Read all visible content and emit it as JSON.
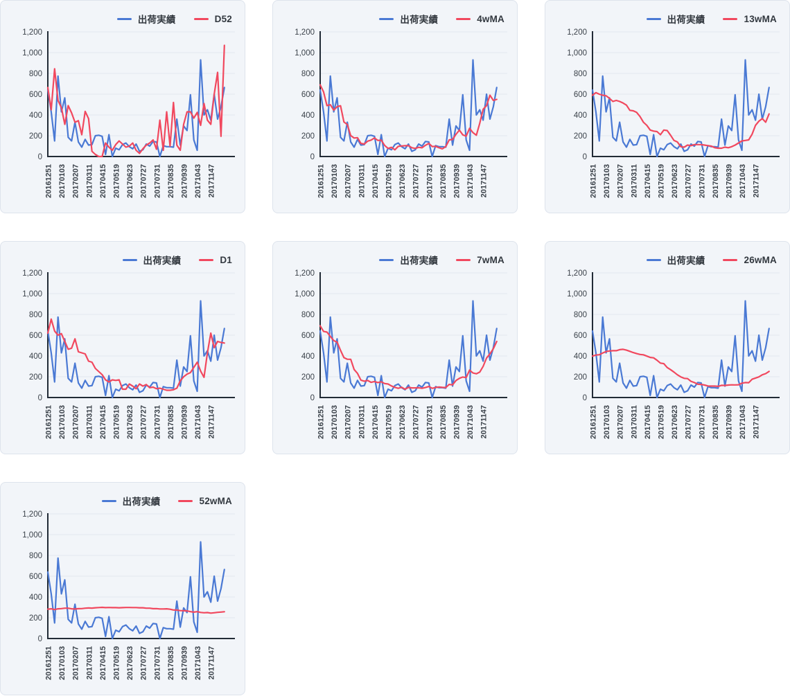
{
  "style": {
    "page_bg": "#ffffff",
    "panel_bg": "#f2f5f9",
    "panel_border": "#dde3ec",
    "actual_color": "#4a79d4",
    "comparison_color": "#f1485e",
    "axis_color": "#222b36",
    "grid_color": "#e2e7ee",
    "tick_text_color": "#3a4149"
  },
  "chart_data": {
    "type": "line",
    "n_points": 53,
    "ylim": [
      0,
      1200
    ],
    "grid": "horizontal",
    "legend_position": "top-right",
    "y_tick_values": [
      0,
      200,
      400,
      600,
      800,
      1000,
      1200
    ],
    "y_tick_labels": [
      "0",
      "200",
      "400",
      "600",
      "800",
      "1,000",
      "1,200"
    ],
    "x_tick_labels": [
      "20161251",
      "20170103",
      "20170207",
      "20170311",
      "20170415",
      "20170519",
      "20170623",
      "20170727",
      "20170731",
      "20170835",
      "20170939",
      "20171043",
      "20171147"
    ],
    "x_label_every": 4,
    "actual_series_name": "出荷実績",
    "actual_series_values": [
      640,
      430,
      150,
      775,
      430,
      565,
      185,
      150,
      330,
      140,
      90,
      165,
      110,
      115,
      200,
      205,
      195,
      20,
      210,
      0,
      80,
      65,
      115,
      130,
      95,
      75,
      120,
      50,
      65,
      120,
      100,
      145,
      140,
      0,
      105,
      95,
      95,
      90,
      360,
      110,
      295,
      250,
      595,
      160,
      60,
      930,
      400,
      450,
      350,
      600,
      360,
      480,
      665
    ],
    "charts": [
      {
        "comparison_name": "D52",
        "comparison_values": [
          665,
          450,
          845,
          540,
          470,
          310,
          490,
          420,
          330,
          345,
          210,
          435,
          365,
          50,
          20,
          0,
          0,
          130,
          90,
          60,
          115,
          150,
          120,
          90,
          100,
          130,
          60,
          30,
          75,
          110,
          130,
          160,
          70,
          350,
          60,
          430,
          100,
          520,
          110,
          60,
          310,
          430,
          430,
          370,
          425,
          300,
          510,
          350,
          310,
          600,
          810,
          195,
          1070
        ]
      },
      {
        "comparison_name": "4wMA",
        "comparison_values": [
          690,
          623,
          490,
          499,
          446,
          480,
          489,
          333,
          308,
          201,
          178,
          181,
          126,
          120,
          148,
          158,
          179,
          155,
          158,
          106,
          78,
          89,
          65,
          98,
          101,
          104,
          105,
          85,
          78,
          89,
          84,
          108,
          126,
          96,
          98,
          85,
          74,
          96,
          160,
          164,
          214,
          254,
          209,
          196,
          271,
          230,
          205,
          320,
          455,
          490,
          590,
          540,
          550
        ]
      },
      {
        "comparison_name": "13wMA",
        "comparison_values": [
          590,
          615,
          600,
          590,
          585,
          560,
          530,
          540,
          530,
          515,
          495,
          445,
          440,
          425,
          385,
          330,
          300,
          255,
          245,
          240,
          210,
          255,
          250,
          205,
          155,
          140,
          95,
          90,
          110,
          105,
          115,
          115,
          115,
          110,
          105,
          100,
          85,
          80,
          80,
          90,
          85,
          95,
          110,
          130,
          150,
          155,
          160,
          215,
          300,
          340,
          365,
          330,
          410
        ]
      },
      {
        "comparison_name": "D1",
        "comparison_values": [
          620,
          755,
          640,
          600,
          615,
          540,
          465,
          475,
          565,
          440,
          430,
          420,
          350,
          340,
          280,
          250,
          220,
          170,
          150,
          170,
          165,
          170,
          80,
          80,
          130,
          110,
          85,
          130,
          110,
          125,
          95,
          100,
          85,
          90,
          80,
          70,
          70,
          75,
          90,
          160,
          200,
          225,
          240,
          290,
          340,
          255,
          195,
          430,
          620,
          480,
          540,
          530,
          525
        ]
      },
      {
        "comparison_name": "7wMA",
        "comparison_values": [
          691,
          636,
          630,
          588,
          549,
          533,
          454,
          384,
          369,
          368,
          270,
          232,
          167,
          157,
          164,
          146,
          154,
          144,
          151,
          135,
          130,
          111,
          98,
          89,
          99,
          80,
          97,
          93,
          93,
          94,
          89,
          96,
          106,
          89,
          96,
          101,
          97,
          96,
          126,
          122,
          164,
          185,
          197,
          192,
          264,
          236,
          229,
          245,
          300,
          380,
          420,
          470,
          540
        ]
      },
      {
        "comparison_name": "26wMA",
        "comparison_values": [
          399,
          409,
          412,
          428,
          443,
          448,
          451,
          451,
          461,
          464,
          456,
          445,
          433,
          423,
          415,
          411,
          399,
          386,
          382,
          359,
          331,
          326,
          289,
          268,
          245,
          219,
          199,
          185,
          182,
          156,
          144,
          128,
          126,
          120,
          111,
          110,
          110,
          107,
          117,
          116,
          120,
          122,
          121,
          123,
          138,
          144,
          143,
          176,
          187,
          199,
          219,
          230,
          251
        ]
      },
      {
        "comparison_name": "52wMA",
        "comparison_values": [
          283,
          286,
          279,
          286,
          288,
          292,
          292,
          286,
          285,
          287,
          288,
          292,
          294,
          293,
          296,
          298,
          300,
          297,
          299,
          297,
          297,
          296,
          297,
          299,
          299,
          298,
          298,
          296,
          296,
          292,
          292,
          287,
          288,
          285,
          285,
          286,
          282,
          275,
          274,
          269,
          267,
          266,
          259,
          254,
          259,
          251,
          248,
          250,
          245,
          248,
          252,
          255,
          258
        ]
      }
    ]
  }
}
